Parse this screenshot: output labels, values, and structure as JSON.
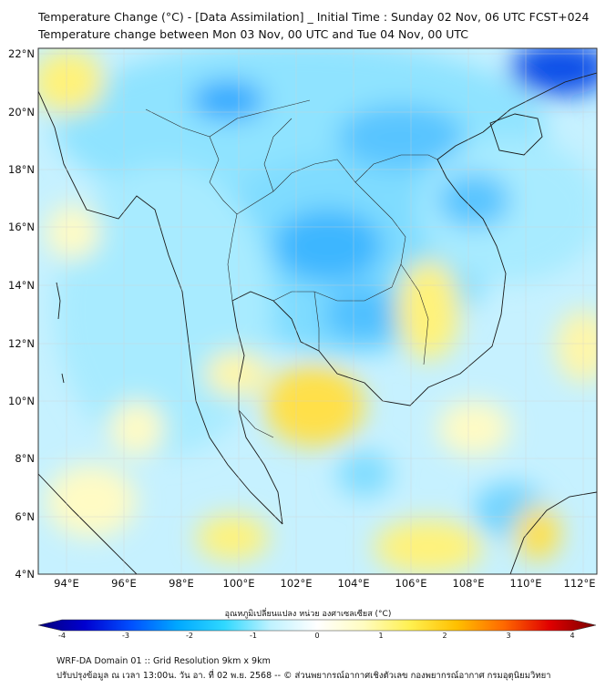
{
  "title": {
    "line1": "Temperature Change (°C) - [Data Assimilation] _ Initial Time : Sunday 02 Nov, 06 UTC FCST+024",
    "line2": "Temperature change between Mon 03 Nov, 00 UTC and Tue 04 Nov, 00 UTC"
  },
  "map": {
    "lat_labels": [
      "22°N",
      "20°N",
      "18°N",
      "16°N",
      "14°N",
      "12°N",
      "10°N",
      "8°N",
      "6°N",
      "4°N"
    ],
    "lon_labels": [
      "94°E",
      "96°E",
      "98°E",
      "100°E",
      "102°E",
      "104°E",
      "106°E",
      "108°E",
      "110°E",
      "112°E"
    ],
    "extent": {
      "lon_min": 93,
      "lon_max": 112.5,
      "lat_min": 4,
      "lat_max": 22.2
    }
  },
  "colorbar": {
    "title": "อุณหภูมิเปลี่ยนแปลง หน่วย องศาเซลเซียส (°C)",
    "ticks": [
      "-4",
      "-3",
      "-2",
      "-1",
      "0",
      "1",
      "2",
      "3",
      "4"
    ],
    "range": [
      -4,
      4
    ],
    "colors": [
      "#06007a",
      "#0000d0",
      "#0050ff",
      "#00a8ff",
      "#2fd8ff",
      "#bff2ff",
      "#ffffff",
      "#fffcc0",
      "#fff050",
      "#ffc000",
      "#ff6a00",
      "#e00000",
      "#780000"
    ]
  },
  "footer": {
    "line1": "WRF-DA Domain 01 :: Grid Resolution 9km x 9km",
    "line2": "ปรับปรุงข้อมูล ณ เวลา 13:00น. วัน อา. ที่ 02 พ.ย. 2568 -- © ส่วนพยากรณ์อากาศเชิงตัวเลข กองพยากรณ์อากาศ กรมอุตุนิยมวิทยา"
  }
}
